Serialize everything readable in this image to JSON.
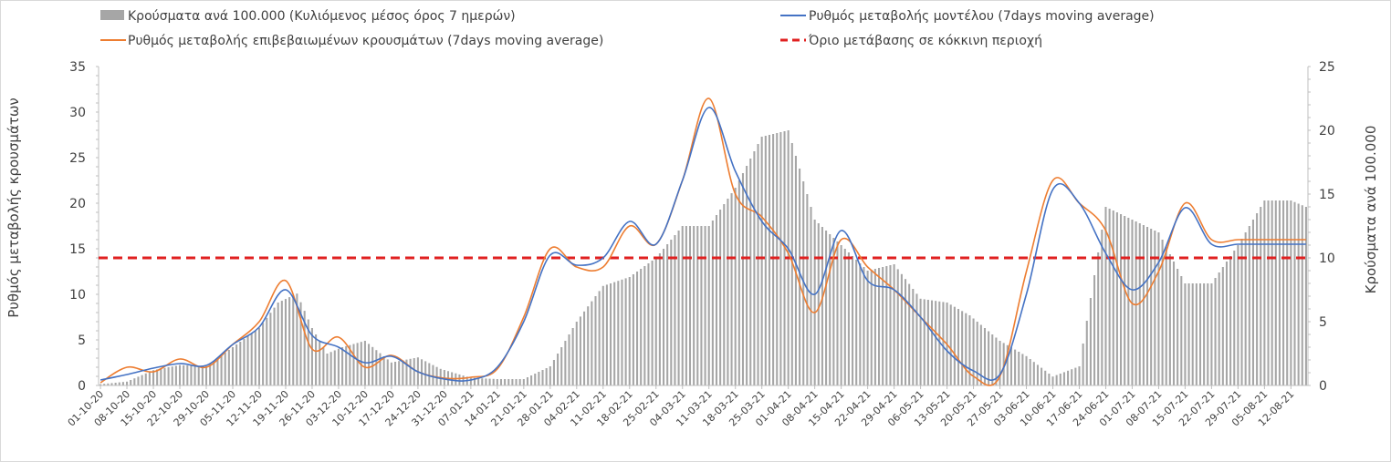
{
  "chart_data": {
    "type": "bar",
    "title": "",
    "ylabel_left": "Ρυθμός μεταβολής κρουσμάτων",
    "ylabel_right": "Κρούσματα ανά 100.000",
    "ylim_left": [
      0,
      35
    ],
    "ylim_right": [
      0,
      25
    ],
    "yticks_left": [
      "0",
      "5",
      "10",
      "15",
      "20",
      "25",
      "30",
      "35"
    ],
    "yticks_right": [
      "0",
      "5",
      "10",
      "15",
      "20",
      "25"
    ],
    "grid": false,
    "legend_placement": "top",
    "x_start": "01-10-20",
    "x_end": "16-08-21",
    "xticks": [
      "01-10-20",
      "08-10-20",
      "15-10-20",
      "22-10-20",
      "29-10-20",
      "05-11-20",
      "12-11-20",
      "19-11-20",
      "26-11-20",
      "03-12-20",
      "10-12-20",
      "17-12-20",
      "24-12-20",
      "31-12-20",
      "07-01-21",
      "14-01-21",
      "21-01-21",
      "28-01-21",
      "04-02-21",
      "11-02-21",
      "18-02-21",
      "25-02-21",
      "04-03-21",
      "11-03-21",
      "18-03-21",
      "25-03-21",
      "01-04-21",
      "08-04-21",
      "15-04-21",
      "22-04-21",
      "29-04-21",
      "06-05-21",
      "13-05-21",
      "20-05-21",
      "27-05-21",
      "03-06-21",
      "10-06-21",
      "17-06-21",
      "24-06-21",
      "01-07-21",
      "08-07-21",
      "15-07-21",
      "22-07-21",
      "29-07-21",
      "05-08-21",
      "12-08-21"
    ],
    "series": [
      {
        "name": "Κρούσματα ανά 100.000 (Κυλιόμενος μέσος όρος 7 ημερών)",
        "kind": "bar",
        "axis": "right",
        "color": "#a6a6a6",
        "anchor_days": [
          0,
          7,
          14,
          21,
          28,
          35,
          42,
          47,
          52,
          56,
          60,
          64,
          70,
          77,
          84,
          90,
          98,
          105,
          112,
          119,
          126,
          133,
          140,
          147,
          154,
          161,
          168,
          175,
          182,
          189,
          196,
          203,
          210,
          217,
          224,
          230,
          238,
          245,
          252,
          259,
          266,
          273,
          280,
          287,
          294,
          301,
          308,
          315,
          319
        ],
        "values": [
          0.1,
          0.3,
          1.2,
          1.6,
          1.5,
          3.0,
          4.5,
          6.5,
          7.2,
          4.5,
          2.5,
          3.0,
          3.5,
          1.8,
          2.2,
          1.3,
          0.6,
          0.5,
          0.5,
          1.5,
          5.0,
          7.8,
          8.5,
          10.0,
          12.5,
          12.5,
          15.5,
          19.5,
          20.0,
          13.0,
          11.0,
          9.0,
          9.5,
          6.8,
          6.5,
          5.5,
          3.5,
          2.3,
          0.7,
          1.5,
          14.0,
          13.0,
          12.0,
          8.0,
          8.0,
          11.0,
          14.5,
          14.5,
          14.0
        ]
      },
      {
        "name": "Ρυθμός μεταβολής μοντέλου (7days moving average)",
        "kind": "line",
        "axis": "left",
        "color": "#4472c4",
        "anchor_days": [
          0,
          7,
          14,
          21,
          28,
          35,
          42,
          49,
          56,
          63,
          70,
          77,
          84,
          91,
          98,
          105,
          112,
          119,
          126,
          133,
          140,
          147,
          154,
          161,
          168,
          175,
          182,
          189,
          196,
          203,
          210,
          217,
          224,
          231,
          238,
          245,
          252,
          259,
          266,
          273,
          280,
          287,
          294,
          301,
          308,
          315,
          319
        ],
        "values": [
          0.6,
          1.2,
          1.9,
          2.4,
          2.2,
          4.5,
          6.4,
          10.5,
          5.5,
          4.2,
          2.5,
          3.2,
          1.5,
          0.7,
          0.6,
          2.0,
          7.0,
          14.3,
          13.2,
          14.0,
          18.0,
          15.5,
          22.5,
          30.5,
          23.5,
          18.0,
          15.0,
          10.0,
          17.0,
          11.5,
          10.5,
          7.5,
          3.8,
          1.6,
          1.2,
          10.0,
          21.5,
          20.0,
          14.5,
          10.5,
          13.5,
          19.5,
          15.5,
          15.5,
          15.5,
          15.5,
          15.5
        ]
      },
      {
        "name": "Ρυθμός μεταβολής επιβεβαιωμένων κρουσμάτων (7days moving average)",
        "kind": "line",
        "axis": "left",
        "color": "#ed7d31",
        "anchor_days": [
          0,
          7,
          14,
          21,
          28,
          35,
          42,
          49,
          56,
          63,
          70,
          77,
          84,
          91,
          98,
          105,
          112,
          119,
          126,
          133,
          140,
          147,
          154,
          161,
          168,
          175,
          182,
          189,
          196,
          203,
          210,
          217,
          224,
          231,
          238,
          245,
          252,
          259,
          266,
          273,
          280,
          287,
          294,
          301,
          308,
          315,
          319
        ],
        "values": [
          0.3,
          2.0,
          1.5,
          2.9,
          2.0,
          4.5,
          7.0,
          11.5,
          4.0,
          5.3,
          2.0,
          3.3,
          1.5,
          0.8,
          0.9,
          1.8,
          7.5,
          15.0,
          13.0,
          13.0,
          17.5,
          15.5,
          22.5,
          31.5,
          21.0,
          18.5,
          14.5,
          8.0,
          16.0,
          13.0,
          10.5,
          7.5,
          4.5,
          1.0,
          1.0,
          12.5,
          22.5,
          20.0,
          17.0,
          9.0,
          12.5,
          20.0,
          16.0,
          16.0,
          16.0,
          16.0,
          16.0
        ]
      },
      {
        "name": "Όριο μετάβασης σε κόκκινη περιοχή",
        "kind": "line",
        "axis": "left",
        "style": "dashed",
        "color": "#e02020",
        "value": 14
      }
    ]
  }
}
